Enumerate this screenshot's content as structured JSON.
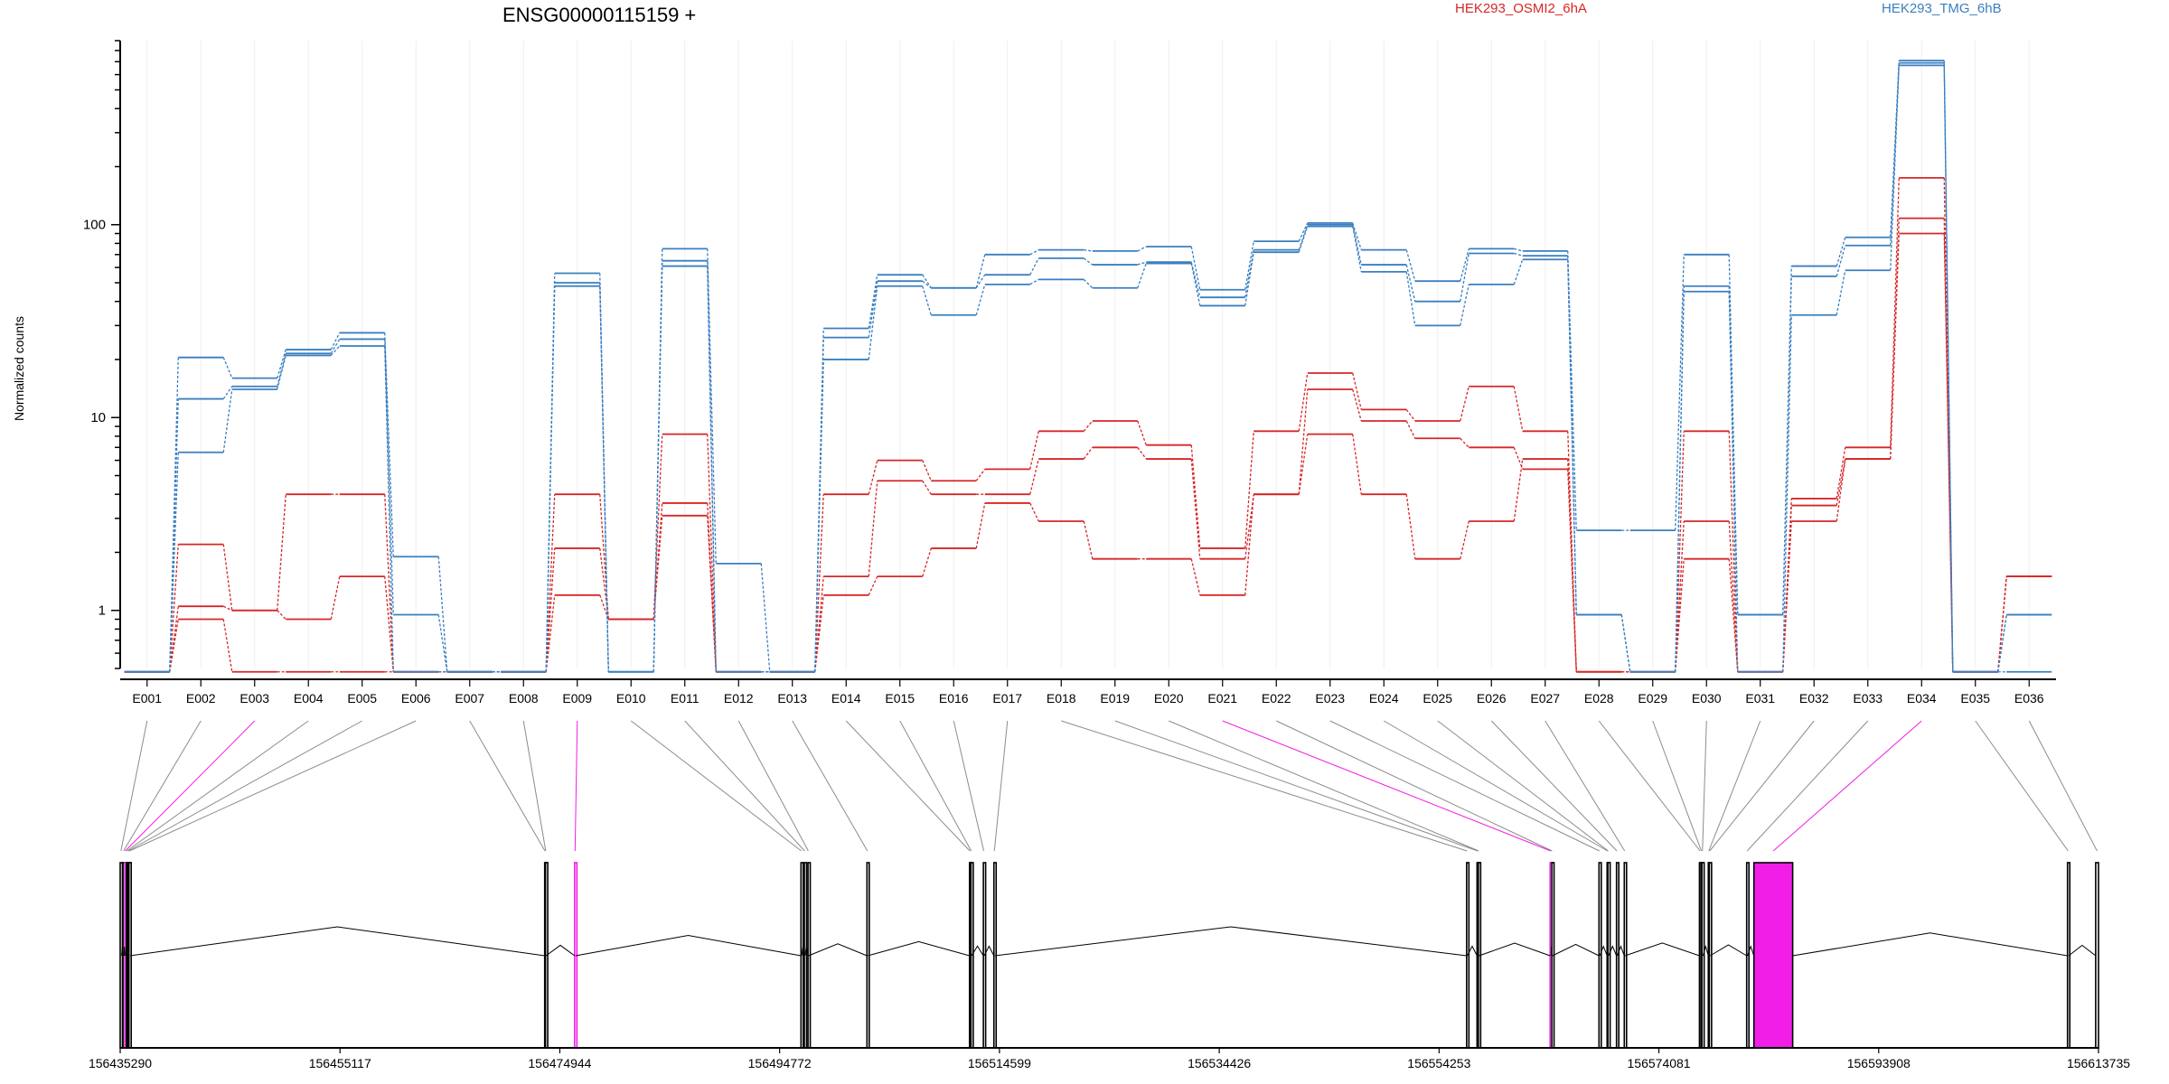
{
  "chart_data": {
    "type": "line",
    "title": "ENSG00000115159 +",
    "ylabel": "Normalized counts",
    "yscale": "log",
    "yticks": [
      1,
      10,
      100
    ],
    "ytick_labels": [
      "1",
      "10",
      "100"
    ],
    "ylim": [
      0.5,
      900
    ],
    "grid": "vertical-light",
    "legend": [
      {
        "name": "HEK293_OSMI2_6hA",
        "color": "#d62728"
      },
      {
        "name": "HEK293_TMG_6hB",
        "color": "#3a7fbf"
      }
    ],
    "categories": [
      "E001",
      "E002",
      "E003",
      "E004",
      "E005",
      "E006",
      "E007",
      "E008",
      "E009",
      "E010",
      "E011",
      "E012",
      "E013",
      "E014",
      "E015",
      "E016",
      "E017",
      "E018",
      "E019",
      "E020",
      "E021",
      "E022",
      "E023",
      "E024",
      "E025",
      "E026",
      "E027",
      "E028",
      "E029",
      "E030",
      "E031",
      "E032",
      "E033",
      "E034",
      "E035",
      "E036"
    ],
    "series": [
      {
        "group": "HEK293_OSMI2_6hA",
        "color": "#d62728",
        "values": [
          0.48,
          2.2,
          1.0,
          4.0,
          4.0,
          0.48,
          0.48,
          0.48,
          4.0,
          0.9,
          8.2,
          0.48,
          0.48,
          4.0,
          6.0,
          4.7,
          5.4,
          8.5,
          9.6,
          7.2,
          2.1,
          8.5,
          17.0,
          11.0,
          9.6,
          14.5,
          8.5,
          0.48,
          0.48,
          8.5,
          0.48,
          3.8,
          7.0,
          175,
          0.48,
          1.5
        ]
      },
      {
        "group": "HEK293_OSMI2_6hA",
        "color": "#d62728",
        "values": [
          0.48,
          1.05,
          1.0,
          0.9,
          1.5,
          0.48,
          0.48,
          0.48,
          2.1,
          0.9,
          3.6,
          0.48,
          0.48,
          1.5,
          4.7,
          4.0,
          4.0,
          6.1,
          7.0,
          6.1,
          1.85,
          4.0,
          14.0,
          9.6,
          7.8,
          7.0,
          5.4,
          0.48,
          0.48,
          2.9,
          0.48,
          3.5,
          6.1,
          108,
          0.48,
          1.5
        ]
      },
      {
        "group": "HEK293_OSMI2_6hA",
        "color": "#d62728",
        "values": [
          0.48,
          0.9,
          0.48,
          0.48,
          0.48,
          0.48,
          0.48,
          0.48,
          1.2,
          0.9,
          3.1,
          0.48,
          0.48,
          1.2,
          1.5,
          2.1,
          3.6,
          2.9,
          1.85,
          1.85,
          1.2,
          4.0,
          8.2,
          4.0,
          1.85,
          2.9,
          6.1,
          0.48,
          0.48,
          1.85,
          0.48,
          2.9,
          6.1,
          90,
          0.48,
          1.5
        ]
      },
      {
        "group": "HEK293_TMG_6hB",
        "color": "#3a7fbf",
        "values": [
          0.48,
          20.5,
          16.0,
          22.5,
          27.5,
          1.9,
          0.48,
          0.48,
          56,
          0.48,
          75,
          1.75,
          0.48,
          29,
          55,
          47,
          70,
          74,
          73,
          77,
          46,
          82,
          102,
          74,
          51,
          75,
          73,
          2.6,
          2.6,
          70,
          0.95,
          61,
          86,
          710,
          0.48,
          0.95
        ]
      },
      {
        "group": "HEK293_TMG_6hB",
        "color": "#3a7fbf",
        "values": [
          0.48,
          12.5,
          14.5,
          21.5,
          25.5,
          0.95,
          0.48,
          0.48,
          50,
          0.48,
          65,
          0.48,
          0.48,
          26,
          51,
          47,
          55,
          67,
          62,
          64,
          42,
          74,
          100,
          62,
          40,
          71,
          69,
          0.95,
          0.48,
          48,
          0.95,
          54,
          78,
          690,
          0.48,
          0.95
        ]
      },
      {
        "group": "HEK293_TMG_6hB",
        "color": "#3a7fbf",
        "values": [
          0.48,
          6.6,
          14.0,
          21.0,
          23.5,
          0.48,
          0.48,
          0.48,
          48,
          0.48,
          61,
          0.48,
          0.48,
          20,
          48,
          34,
          49,
          52,
          47,
          63,
          38,
          72,
          98,
          57,
          30,
          49,
          66,
          0.95,
          0.48,
          45,
          0.48,
          34,
          58,
          670,
          0.48,
          0.48
        ]
      }
    ],
    "genome_axis": {
      "tick_labels": [
        "156435290",
        "156455117",
        "156474944",
        "156494772",
        "156514599",
        "156534426",
        "156554253",
        "156574081",
        "156593908",
        "156613735"
      ]
    },
    "gene_model": {
      "highlight_color": "#f01ee6",
      "exons": [
        {
          "id": "E001",
          "start": 156435290,
          "end": 156435420
        },
        {
          "id": "E002",
          "start": 156435540,
          "end": 156435640
        },
        {
          "id": "E003",
          "start": 156435700,
          "end": 156435790,
          "highlight": true
        },
        {
          "id": "E004",
          "start": 156435850,
          "end": 156435930
        },
        {
          "id": "E005",
          "start": 156435960,
          "end": 156436050
        },
        {
          "id": "E006",
          "start": 156436080,
          "end": 156436180
        },
        {
          "id": "E007",
          "start": 156473580,
          "end": 156473630
        },
        {
          "id": "E008",
          "start": 156473650,
          "end": 156473700
        },
        {
          "id": "E009",
          "start": 156476280,
          "end": 156476360,
          "highlight": true
        },
        {
          "id": "E010",
          "start": 156496700,
          "end": 156496760
        },
        {
          "id": "E011",
          "start": 156497000,
          "end": 156497060
        },
        {
          "id": "E012",
          "start": 156497330,
          "end": 156497380
        },
        {
          "id": "E013",
          "start": 156502650,
          "end": 156502730
        },
        {
          "id": "E014",
          "start": 156511900,
          "end": 156511960
        },
        {
          "id": "E015",
          "start": 156512030,
          "end": 156512080
        },
        {
          "id": "E016",
          "start": 156513150,
          "end": 156513220
        },
        {
          "id": "E017",
          "start": 156514100,
          "end": 156514180
        },
        {
          "id": "E018",
          "start": 156556740,
          "end": 156556800
        },
        {
          "id": "E019",
          "start": 156557680,
          "end": 156557750
        },
        {
          "id": "E020",
          "start": 156557800,
          "end": 156557860
        },
        {
          "id": "E021",
          "start": 156564270,
          "end": 156564360,
          "highlight": true
        },
        {
          "id": "E022",
          "start": 156564420,
          "end": 156564480
        },
        {
          "id": "E023",
          "start": 156568680,
          "end": 156568750
        },
        {
          "id": "E024",
          "start": 156569410,
          "end": 156569470
        },
        {
          "id": "E025",
          "start": 156569480,
          "end": 156569540
        },
        {
          "id": "E026",
          "start": 156570260,
          "end": 156570330
        },
        {
          "id": "E027",
          "start": 156570960,
          "end": 156571030
        },
        {
          "id": "E028",
          "start": 156577740,
          "end": 156577860
        },
        {
          "id": "E029",
          "start": 156577880,
          "end": 156577950
        },
        {
          "id": "E030",
          "start": 156577960,
          "end": 156578060
        },
        {
          "id": "E031",
          "start": 156578540,
          "end": 156578620
        },
        {
          "id": "E032",
          "start": 156578630,
          "end": 156578700
        },
        {
          "id": "E033",
          "start": 156582000,
          "end": 156582080
        },
        {
          "id": "E034",
          "start": 156582650,
          "end": 156586150,
          "highlight": true
        },
        {
          "id": "E035",
          "start": 156610940,
          "end": 156611040
        },
        {
          "id": "E036",
          "start": 156613480,
          "end": 156613735
        }
      ]
    }
  }
}
